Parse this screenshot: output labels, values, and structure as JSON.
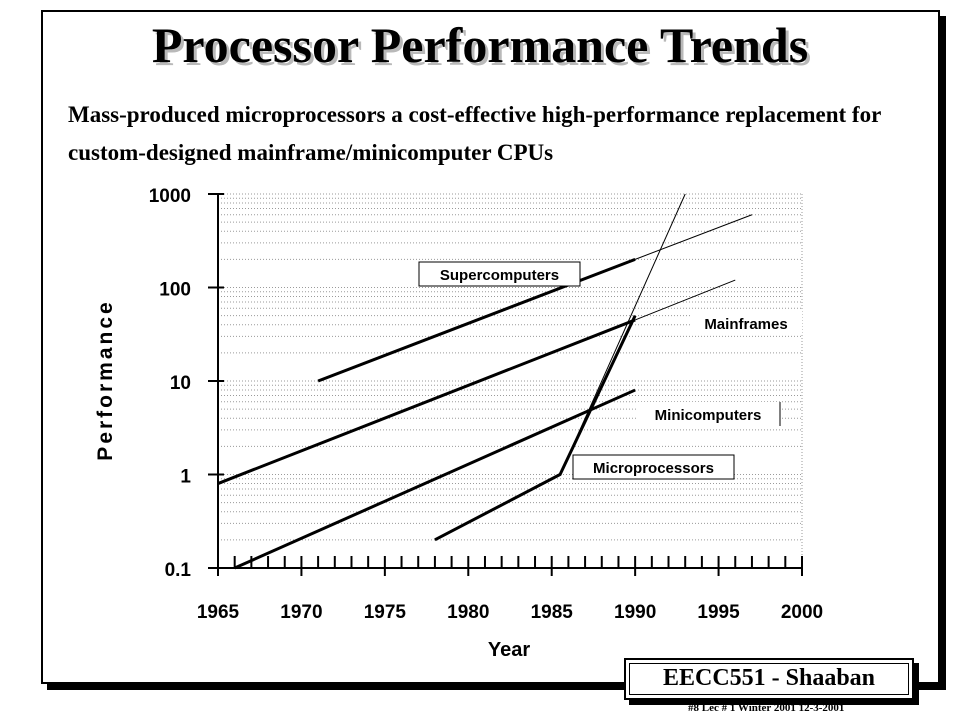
{
  "slide": {
    "title": "Processor Performance Trends",
    "subtitle": "Mass-produced microprocessors a cost-effective high-performance replacement for custom-designed mainframe/minicomputer CPUs",
    "badge": "EECC551  - Shaaban",
    "footer": "#8   Lec # 1 Winter  2001   12-3-2001"
  },
  "chart_data": {
    "type": "line",
    "title": "",
    "xlabel": "Year",
    "ylabel": "Performance",
    "xlim": [
      1965,
      2000
    ],
    "ylim": [
      0.1,
      1000
    ],
    "yscale": "log",
    "x_ticks": [
      1965,
      1970,
      1975,
      1980,
      1985,
      1990,
      1995,
      2000
    ],
    "y_ticks": [
      {
        "value": 0.1,
        "label": "0.1"
      },
      {
        "value": 1,
        "label": "1"
      },
      {
        "value": 10,
        "label": "10"
      },
      {
        "value": 100,
        "label": "100"
      },
      {
        "value": 1000,
        "label": "1000"
      }
    ],
    "grid": "horizontal dotted",
    "series": [
      {
        "name": "Supercomputers",
        "points": [
          [
            1971,
            10
          ],
          [
            1990,
            200
          ]
        ],
        "extrapolation": [
          [
            1990,
            200
          ],
          [
            1997,
            600
          ]
        ]
      },
      {
        "name": "Mainframes",
        "points": [
          [
            1965,
            0.8
          ],
          [
            1990,
            45
          ]
        ],
        "extrapolation": [
          [
            1990,
            45
          ],
          [
            1996,
            120
          ]
        ]
      },
      {
        "name": "Minicomputers",
        "points": [
          [
            1966,
            0.1
          ],
          [
            1990,
            8
          ]
        ],
        "extrapolation": []
      },
      {
        "name": "Microprocessors",
        "points": [
          [
            1978,
            0.2
          ],
          [
            1985.5,
            1
          ],
          [
            1990,
            50
          ]
        ],
        "extrapolation": [
          [
            1985.5,
            1
          ],
          [
            1993,
            1000
          ]
        ]
      }
    ],
    "colors": {
      "lines": "#000000",
      "grid": "#9a9a9a"
    }
  }
}
